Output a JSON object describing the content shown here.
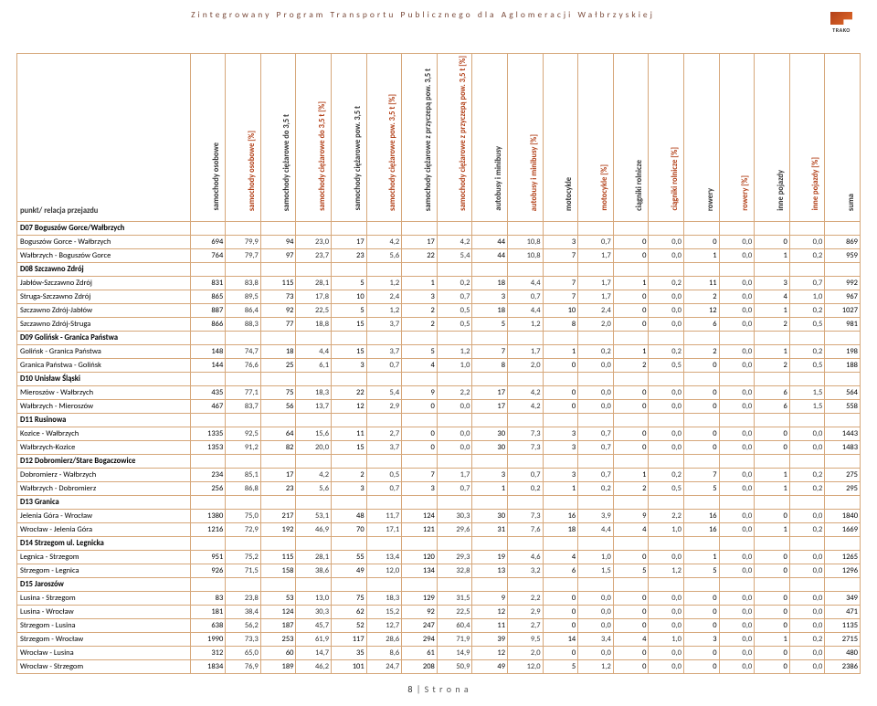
{
  "docTitle": "Zintegrowany Program Transportu Publicznego dla Aglomeracji Wałbrzyskiej",
  "logoText": "TRAKO",
  "firstColHeader": "punkt/ relacja przejazdu",
  "footerPage": "8",
  "footerWord": "| S t r o n a",
  "colors": {
    "border": "#d6a77a",
    "accent": "#b24018",
    "titleText": "#7a4a3a"
  },
  "columns": [
    {
      "label": "samochody osobowe",
      "pct": false
    },
    {
      "label": "samochody osobowe [%]",
      "pct": true
    },
    {
      "label": "samochody ciężarowe do 3,5 t",
      "pct": false
    },
    {
      "label": "samochody ciężarowe do 3,5 t [%]",
      "pct": true
    },
    {
      "label": "samochody ciężarowe pow. 3,5 t",
      "pct": false
    },
    {
      "label": "samochody ciężarowe pow. 3,5 t [%]",
      "pct": true
    },
    {
      "label": "samochody ciężarowe z przyczepą pow. 3,5 t",
      "pct": false
    },
    {
      "label": "samochody ciężarowe z przyczepą pow. 3,5 t [%]",
      "pct": true
    },
    {
      "label": "autobusy i minibusy",
      "pct": false
    },
    {
      "label": "autobusy i minibusy [%]",
      "pct": true
    },
    {
      "label": "motocykle",
      "pct": false
    },
    {
      "label": "motocykle [%]",
      "pct": true
    },
    {
      "label": "ciągniki rolnicze",
      "pct": false
    },
    {
      "label": "ciągniki rolnicze [%]",
      "pct": true
    },
    {
      "label": "rowery",
      "pct": false
    },
    {
      "label": "rowery [%]",
      "pct": true
    },
    {
      "label": "inne pojazdy",
      "pct": false
    },
    {
      "label": "inne pojazdy [%]",
      "pct": true
    },
    {
      "label": "suma",
      "pct": false
    }
  ],
  "rows": [
    {
      "section": true,
      "label": "D07 Boguszów Gorce/Wałbrzych"
    },
    {
      "label": "Boguszów Gorce - Wałbrzych",
      "v": [
        "694",
        "79,9",
        "94",
        "23,0",
        "17",
        "4,2",
        "17",
        "4,2",
        "44",
        "10,8",
        "3",
        "0,7",
        "0",
        "0,0",
        "0",
        "0,0",
        "0",
        "0,0",
        "869"
      ]
    },
    {
      "label": "Wałbrzych - Boguszów Gorce",
      "v": [
        "764",
        "79,7",
        "97",
        "23,7",
        "23",
        "5,6",
        "22",
        "5,4",
        "44",
        "10,8",
        "7",
        "1,7",
        "0",
        "0,0",
        "1",
        "0,0",
        "1",
        "0,2",
        "959"
      ]
    },
    {
      "section": true,
      "label": "D08 Szczawno Zdrój"
    },
    {
      "label": "Jabłów-Szczawno Zdrój",
      "v": [
        "831",
        "83,8",
        "115",
        "28,1",
        "5",
        "1,2",
        "1",
        "0,2",
        "18",
        "4,4",
        "7",
        "1,7",
        "1",
        "0,2",
        "11",
        "0,0",
        "3",
        "0,7",
        "992"
      ]
    },
    {
      "label": "Struga-Szczawno Zdrój",
      "v": [
        "865",
        "89,5",
        "73",
        "17,8",
        "10",
        "2,4",
        "3",
        "0,7",
        "3",
        "0,7",
        "7",
        "1,7",
        "0",
        "0,0",
        "2",
        "0,0",
        "4",
        "1,0",
        "967"
      ]
    },
    {
      "label": "Szczawno Zdrój-Jabłów",
      "v": [
        "887",
        "86,4",
        "92",
        "22,5",
        "5",
        "1,2",
        "2",
        "0,5",
        "18",
        "4,4",
        "10",
        "2,4",
        "0",
        "0,0",
        "12",
        "0,0",
        "1",
        "0,2",
        "1027"
      ]
    },
    {
      "label": "Szczawno Zdrój-Struga",
      "v": [
        "866",
        "88,3",
        "77",
        "18,8",
        "15",
        "3,7",
        "2",
        "0,5",
        "5",
        "1,2",
        "8",
        "2,0",
        "0",
        "0,0",
        "6",
        "0,0",
        "2",
        "0,5",
        "981"
      ]
    },
    {
      "section": true,
      "label": "D09 Golińsk - Granica Państwa"
    },
    {
      "label": "Golińsk - Granica Państwa",
      "v": [
        "148",
        "74,7",
        "18",
        "4,4",
        "15",
        "3,7",
        "5",
        "1,2",
        "7",
        "1,7",
        "1",
        "0,2",
        "1",
        "0,2",
        "2",
        "0,0",
        "1",
        "0,2",
        "198"
      ]
    },
    {
      "label": "Granica Państwa - Golińsk",
      "v": [
        "144",
        "76,6",
        "25",
        "6,1",
        "3",
        "0,7",
        "4",
        "1,0",
        "8",
        "2,0",
        "0",
        "0,0",
        "2",
        "0,5",
        "0",
        "0,0",
        "2",
        "0,5",
        "188"
      ]
    },
    {
      "section": true,
      "label": "D10 Unisław Śląski"
    },
    {
      "label": "Mieroszów - Wałbrzych",
      "v": [
        "435",
        "77,1",
        "75",
        "18,3",
        "22",
        "5,4",
        "9",
        "2,2",
        "17",
        "4,2",
        "0",
        "0,0",
        "0",
        "0,0",
        "0",
        "0,0",
        "6",
        "1,5",
        "564"
      ]
    },
    {
      "label": "Wałbrzych - Mieroszów",
      "v": [
        "467",
        "83,7",
        "56",
        "13,7",
        "12",
        "2,9",
        "0",
        "0,0",
        "17",
        "4,2",
        "0",
        "0,0",
        "0",
        "0,0",
        "0",
        "0,0",
        "6",
        "1,5",
        "558"
      ]
    },
    {
      "section": true,
      "label": "D11 Rusinowa"
    },
    {
      "label": "Kozice - Wałbrzych",
      "v": [
        "1335",
        "92,5",
        "64",
        "15,6",
        "11",
        "2,7",
        "0",
        "0,0",
        "30",
        "7,3",
        "3",
        "0,7",
        "0",
        "0,0",
        "0",
        "0,0",
        "0",
        "0,0",
        "1443"
      ]
    },
    {
      "label": "Wałbrzych-Kozice",
      "v": [
        "1353",
        "91,2",
        "82",
        "20,0",
        "15",
        "3,7",
        "0",
        "0,0",
        "30",
        "7,3",
        "3",
        "0,7",
        "0",
        "0,0",
        "0",
        "0,0",
        "0",
        "0,0",
        "1483"
      ]
    },
    {
      "section": true,
      "label": "D12 Dobromierz/Stare Bogaczowice"
    },
    {
      "label": "Dobromierz - Wałbrzych",
      "v": [
        "234",
        "85,1",
        "17",
        "4,2",
        "2",
        "0,5",
        "7",
        "1,7",
        "3",
        "0,7",
        "3",
        "0,7",
        "1",
        "0,2",
        "7",
        "0,0",
        "1",
        "0,2",
        "275"
      ]
    },
    {
      "label": "Wałbrzych - Dobromierz",
      "v": [
        "256",
        "86,8",
        "23",
        "5,6",
        "3",
        "0,7",
        "3",
        "0,7",
        "1",
        "0,2",
        "1",
        "0,2",
        "2",
        "0,5",
        "5",
        "0,0",
        "1",
        "0,2",
        "295"
      ]
    },
    {
      "section": true,
      "label": "D13 Granica"
    },
    {
      "label": "Jelenia Góra - Wrocław",
      "v": [
        "1380",
        "75,0",
        "217",
        "53,1",
        "48",
        "11,7",
        "124",
        "30,3",
        "30",
        "7,3",
        "16",
        "3,9",
        "9",
        "2,2",
        "16",
        "0,0",
        "0",
        "0,0",
        "1840"
      ]
    },
    {
      "label": "Wrocław - Jelenia Góra",
      "v": [
        "1216",
        "72,9",
        "192",
        "46,9",
        "70",
        "17,1",
        "121",
        "29,6",
        "31",
        "7,6",
        "18",
        "4,4",
        "4",
        "1,0",
        "16",
        "0,0",
        "1",
        "0,2",
        "1669"
      ]
    },
    {
      "section": true,
      "label": "D14 Strzegom ul. Legnicka"
    },
    {
      "label": "Legnica - Strzegom",
      "v": [
        "951",
        "75,2",
        "115",
        "28,1",
        "55",
        "13,4",
        "120",
        "29,3",
        "19",
        "4,6",
        "4",
        "1,0",
        "0",
        "0,0",
        "1",
        "0,0",
        "0",
        "0,0",
        "1265"
      ]
    },
    {
      "label": "Strzegom - Legnica",
      "v": [
        "926",
        "71,5",
        "158",
        "38,6",
        "49",
        "12,0",
        "134",
        "32,8",
        "13",
        "3,2",
        "6",
        "1,5",
        "5",
        "1,2",
        "5",
        "0,0",
        "0",
        "0,0",
        "1296"
      ]
    },
    {
      "section": true,
      "label": "D15 Jaroszów"
    },
    {
      "label": "Lusina - Strzegom",
      "v": [
        "83",
        "23,8",
        "53",
        "13,0",
        "75",
        "18,3",
        "129",
        "31,5",
        "9",
        "2,2",
        "0",
        "0,0",
        "0",
        "0,0",
        "0",
        "0,0",
        "0",
        "0,0",
        "349"
      ]
    },
    {
      "label": "Lusina - Wrocław",
      "v": [
        "181",
        "38,4",
        "124",
        "30,3",
        "62",
        "15,2",
        "92",
        "22,5",
        "12",
        "2,9",
        "0",
        "0,0",
        "0",
        "0,0",
        "0",
        "0,0",
        "0",
        "0,0",
        "471"
      ]
    },
    {
      "label": "Strzegom - Lusina",
      "v": [
        "638",
        "56,2",
        "187",
        "45,7",
        "52",
        "12,7",
        "247",
        "60,4",
        "11",
        "2,7",
        "0",
        "0,0",
        "0",
        "0,0",
        "0",
        "0,0",
        "0",
        "0,0",
        "1135"
      ]
    },
    {
      "label": "Strzegom - Wrocław",
      "v": [
        "1990",
        "73,3",
        "253",
        "61,9",
        "117",
        "28,6",
        "294",
        "71,9",
        "39",
        "9,5",
        "14",
        "3,4",
        "4",
        "1,0",
        "3",
        "0,0",
        "1",
        "0,2",
        "2715"
      ]
    },
    {
      "label": "Wrocław - Lusina",
      "v": [
        "312",
        "65,0",
        "60",
        "14,7",
        "35",
        "8,6",
        "61",
        "14,9",
        "12",
        "2,0",
        "0",
        "0,0",
        "0",
        "0,0",
        "0",
        "0,0",
        "0",
        "0,0",
        "480"
      ]
    },
    {
      "label": "Wrocław - Strzegom",
      "v": [
        "1834",
        "76,9",
        "189",
        "46,2",
        "101",
        "24,7",
        "208",
        "50,9",
        "49",
        "12,0",
        "5",
        "1,2",
        "0",
        "0,0",
        "0",
        "0,0",
        "0",
        "0,0",
        "2386"
      ]
    }
  ]
}
